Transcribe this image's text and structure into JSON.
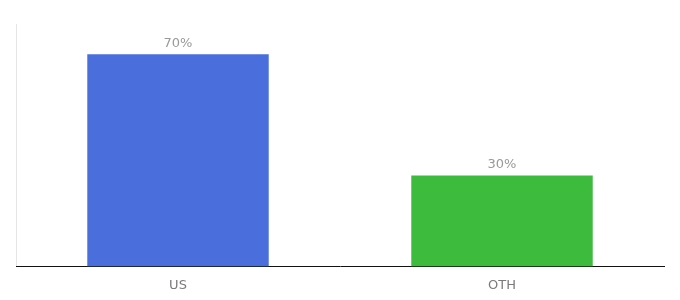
{
  "chart_data": {
    "type": "bar",
    "categories": [
      "US",
      "OTH"
    ],
    "values": [
      70,
      30
    ],
    "value_labels": [
      "70%",
      "30%"
    ],
    "colors": [
      "#4a6fdc",
      "#3dbb3d"
    ],
    "ylim": [
      0,
      80
    ],
    "grid": false,
    "data_labels": true,
    "tick_labels": "x"
  }
}
